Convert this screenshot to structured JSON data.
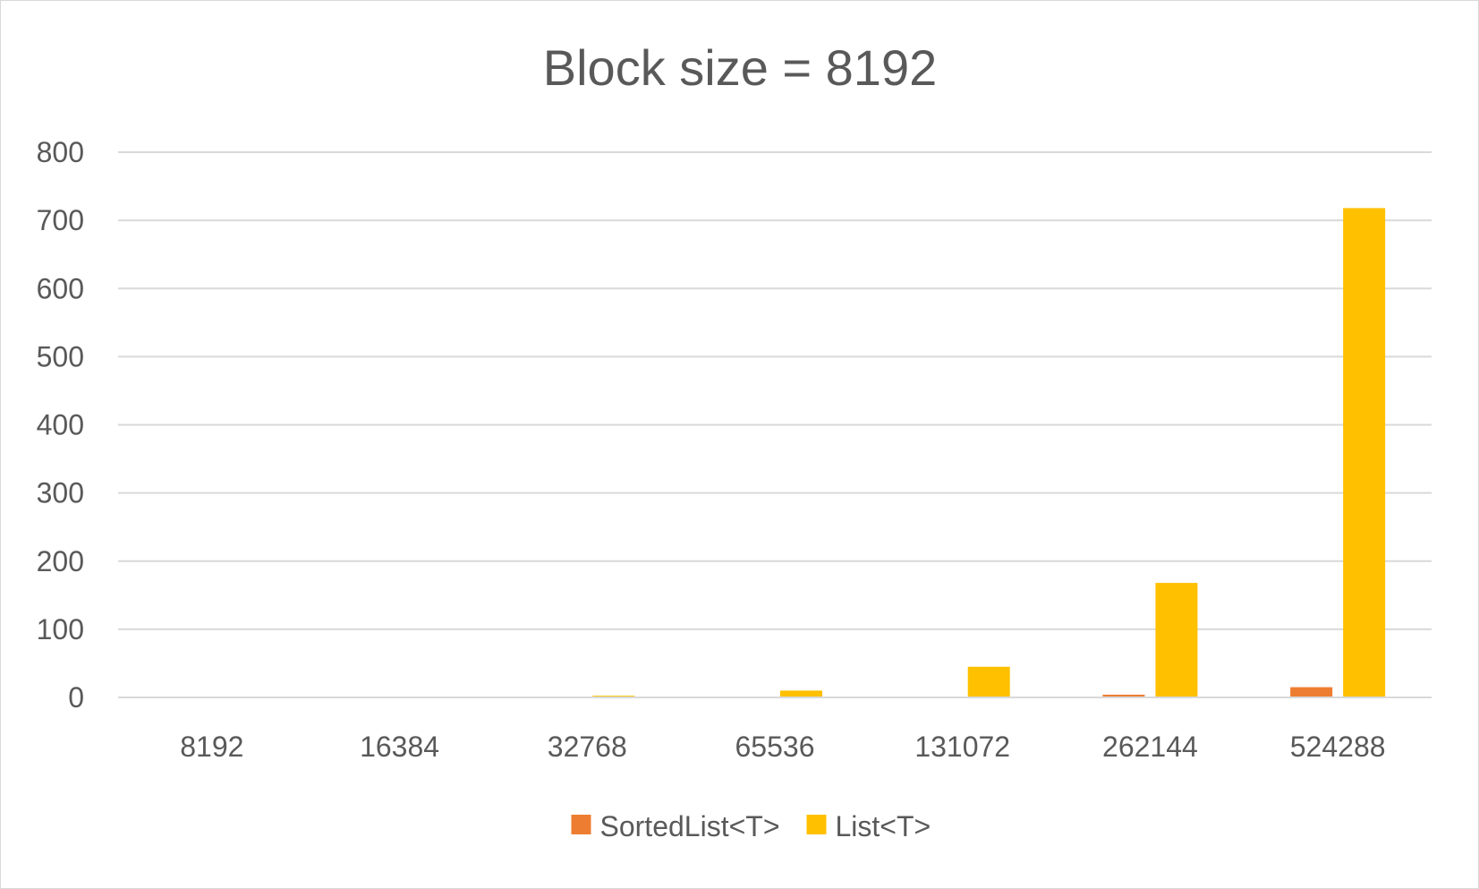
{
  "chart_data": {
    "type": "bar",
    "title": "Block size = 8192",
    "xlabel": "",
    "ylabel": "",
    "categories": [
      "8192",
      "16384",
      "32768",
      "65536",
      "131072",
      "262144",
      "524288"
    ],
    "series": [
      {
        "name": "SortedList<T>",
        "color": "#ED7D31",
        "values": [
          0,
          0,
          0,
          0.3,
          1,
          4,
          15
        ]
      },
      {
        "name": "List<T>",
        "color": "#FFC000",
        "values": [
          0.2,
          0.6,
          2.5,
          10,
          45,
          168,
          718
        ]
      }
    ],
    "ylim": [
      0,
      800
    ],
    "yticks": [
      0,
      100,
      200,
      300,
      400,
      500,
      600,
      700,
      800
    ],
    "grid": true,
    "legend_position": "bottom"
  }
}
